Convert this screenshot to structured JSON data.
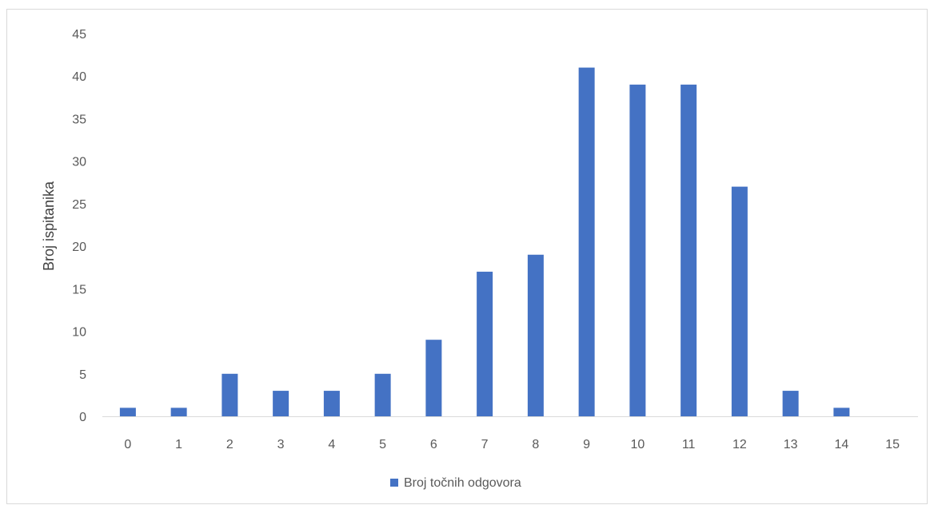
{
  "chart_data": {
    "type": "bar",
    "categories": [
      "0",
      "1",
      "2",
      "3",
      "4",
      "5",
      "6",
      "7",
      "8",
      "9",
      "10",
      "11",
      "12",
      "13",
      "14",
      "15"
    ],
    "series": [
      {
        "name": "Broj točnih odgovora",
        "values": [
          1,
          1,
          5,
          3,
          3,
          5,
          9,
          17,
          19,
          41,
          39,
          39,
          27,
          3,
          1,
          0
        ],
        "color": "#4472c4"
      }
    ],
    "ylabel": "Broj ispitanika",
    "xlabel": "",
    "ylim": [
      0,
      45
    ],
    "yticks": [
      0,
      5,
      10,
      15,
      20,
      25,
      30,
      35,
      40,
      45
    ],
    "grid": false,
    "legend": "bottom"
  }
}
